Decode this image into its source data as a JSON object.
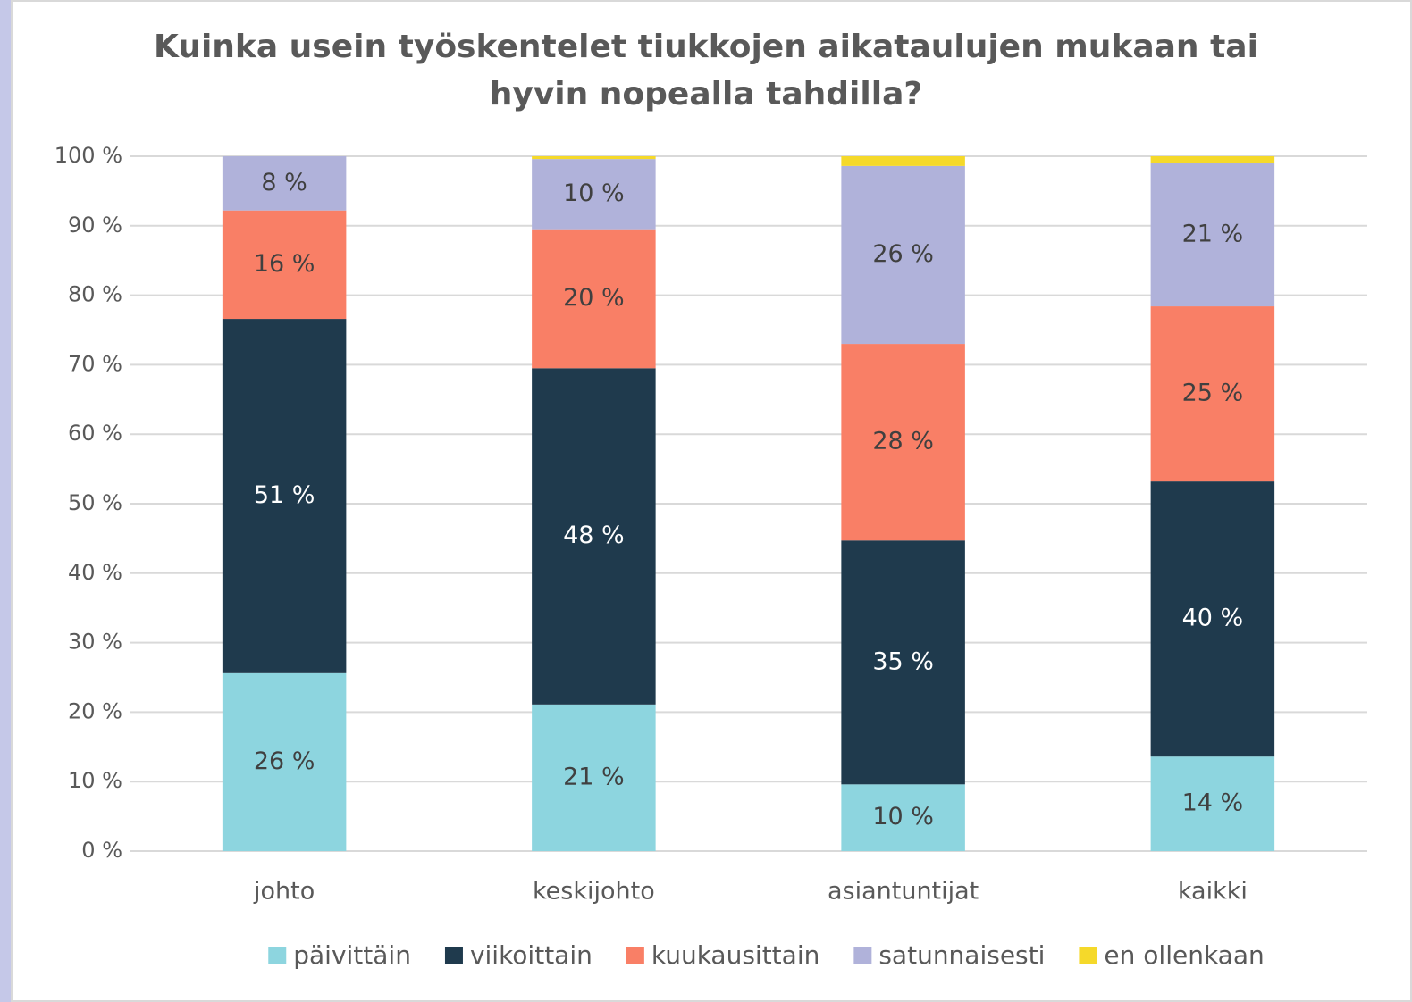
{
  "chart_data": {
    "type": "stacked_bar",
    "title": [
      "Kuinka usein työskentelet tiukkojen aikataulujen mukaan tai",
      "hyvin nopealla tahdilla?"
    ],
    "categories": [
      "johto",
      "keskijohto",
      "asiantuntijat",
      "kaikki"
    ],
    "series": [
      {
        "name": "päivittäin",
        "color": "#8dd5df",
        "values": [
          25.6,
          21.1,
          9.6,
          13.6
        ],
        "value_labels": [
          "26 %",
          "21 %",
          "10 %",
          "14 %"
        ]
      },
      {
        "name": "viikoittain",
        "color": "#1f3a4d",
        "values": [
          51.0,
          48.4,
          35.1,
          39.6
        ],
        "value_labels": [
          "51 %",
          "48 %",
          "35 %",
          "40 %"
        ]
      },
      {
        "name": "kuukausittain",
        "color": "#f97f66",
        "values": [
          15.6,
          20.0,
          28.3,
          25.2
        ],
        "value_labels": [
          "16 %",
          "20 %",
          "28 %",
          "25 %"
        ]
      },
      {
        "name": "satunnaisesti",
        "color": "#b0b2da",
        "values": [
          7.8,
          10.1,
          25.6,
          20.6
        ],
        "value_labels": [
          "8 %",
          "10 %",
          "26 %",
          "21 %"
        ]
      },
      {
        "name": "en ollenkaan",
        "color": "#f5d92a",
        "values": [
          0,
          0.4,
          1.4,
          1.0
        ]
      }
    ],
    "ylim": [
      0,
      100
    ],
    "yticks": [
      {
        "value": 0,
        "label": "0 %"
      },
      {
        "value": 10,
        "label": "10 %"
      },
      {
        "value": 20,
        "label": "20 %"
      },
      {
        "value": 30,
        "label": "30 %"
      },
      {
        "value": 40,
        "label": "40 %"
      },
      {
        "value": 50,
        "label": "50 %"
      },
      {
        "value": 60,
        "label": "60 %"
      },
      {
        "value": 70,
        "label": "70 %"
      },
      {
        "value": 80,
        "label": "80 %"
      },
      {
        "value": 90,
        "label": "90 %"
      },
      {
        "value": 100,
        "label": "100 %"
      }
    ],
    "grid": true,
    "legend": "bottom"
  }
}
